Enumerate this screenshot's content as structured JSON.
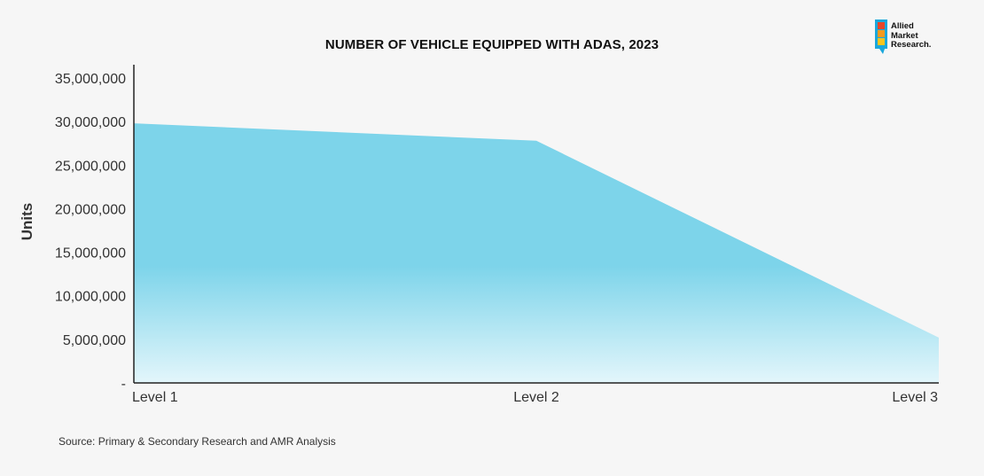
{
  "brand": {
    "logo_lines": [
      "Allied",
      "Market",
      "Research."
    ]
  },
  "source_note": "Source: Primary & Secondary Research and AMR Analysis",
  "chart_data": {
    "type": "area",
    "title": "NUMBER OF VEHICLE EQUIPPED WITH ADAS, 2023",
    "xlabel": "",
    "ylabel": "Units",
    "categories": [
      "Level 1",
      "Level 2",
      "Level 3"
    ],
    "series": [
      {
        "values": [
          29800000,
          27800000,
          5200000
        ]
      }
    ],
    "ylim": [
      0,
      35000000
    ],
    "yticks": [
      0,
      5000000,
      10000000,
      15000000,
      20000000,
      25000000,
      30000000,
      35000000
    ],
    "ytick_labels": [
      "-",
      "5,000,000",
      "10,000,000",
      "15,000,000",
      "20,000,000",
      "25,000,000",
      "30,000,000",
      "35,000,000"
    ],
    "grid": false,
    "legend": "none",
    "colors": {
      "fill_top": "#7dd4ea",
      "fill_bottom": "#e3f6fb"
    }
  }
}
